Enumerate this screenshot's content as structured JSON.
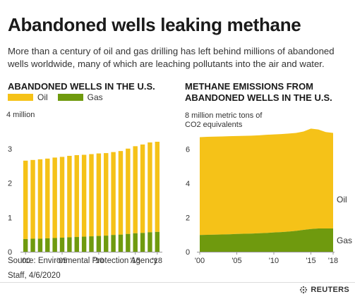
{
  "title": "Abandoned wells leaking methane",
  "subtitle": "More than a century of oil and gas drilling has left behind millions of abandoned wells worldwide, many of which are leaching pollutants into the air and water.",
  "footer": {
    "source": "Source: Environmental Protection Agency",
    "credit": "Staff, 4/6/2020",
    "logo": "REUTERS"
  },
  "colors": {
    "oil": "#f5c218",
    "gas": "#6f9a0e",
    "axis": "#999999",
    "grid": "#cccccc"
  },
  "chart_data": [
    {
      "type": "bar",
      "stacked": true,
      "title": "ABANDONED WELLS IN THE U.S.",
      "unit_label": "4 million",
      "legend": {
        "oil": "Oil",
        "gas": "Gas"
      },
      "categories": [
        "2000",
        "2001",
        "2002",
        "2003",
        "2004",
        "2005",
        "2006",
        "2007",
        "2008",
        "2009",
        "2010",
        "2011",
        "2012",
        "2013",
        "2014",
        "2015",
        "2016",
        "2017",
        "2018"
      ],
      "tick_labels": [
        "'00",
        "'05",
        "'10",
        "'15",
        "'18"
      ],
      "y_ticks": [
        "0",
        "1",
        "2",
        "3"
      ],
      "ylim": [
        0,
        4
      ],
      "series": [
        {
          "name": "Gas",
          "values": [
            0.37,
            0.38,
            0.38,
            0.39,
            0.4,
            0.41,
            0.42,
            0.43,
            0.44,
            0.45,
            0.46,
            0.47,
            0.49,
            0.5,
            0.52,
            0.54,
            0.55,
            0.57,
            0.58
          ]
        },
        {
          "name": "Oil",
          "values": [
            2.28,
            2.29,
            2.31,
            2.32,
            2.34,
            2.35,
            2.37,
            2.38,
            2.38,
            2.39,
            2.4,
            2.4,
            2.41,
            2.43,
            2.48,
            2.53,
            2.57,
            2.61,
            2.62
          ]
        }
      ],
      "grid": false,
      "legend_position": "top-left"
    },
    {
      "type": "area",
      "stacked": true,
      "title": "METHANE EMISSIONS FROM ABANDONED WELLS IN THE U.S.",
      "unit_label": "8 million metric tons of CO2 equivalents",
      "x": [
        2000,
        2001,
        2002,
        2003,
        2004,
        2005,
        2006,
        2007,
        2008,
        2009,
        2010,
        2011,
        2012,
        2013,
        2014,
        2015,
        2016,
        2017,
        2018
      ],
      "tick_labels": [
        "'00",
        "'05",
        "'10",
        "'15",
        "'18"
      ],
      "y_ticks": [
        "0",
        "2",
        "4",
        "6"
      ],
      "ylim": [
        0,
        8
      ],
      "series": [
        {
          "name": "Gas",
          "values": [
            0.98,
            0.99,
            1.0,
            1.01,
            1.02,
            1.04,
            1.05,
            1.06,
            1.08,
            1.1,
            1.13,
            1.15,
            1.18,
            1.22,
            1.28,
            1.33,
            1.36,
            1.36,
            1.36
          ]
        },
        {
          "name": "Oil",
          "values": [
            5.72,
            5.73,
            5.73,
            5.73,
            5.74,
            5.73,
            5.73,
            5.73,
            5.73,
            5.74,
            5.73,
            5.73,
            5.73,
            5.73,
            5.75,
            5.87,
            5.79,
            5.64,
            5.59
          ]
        }
      ],
      "inline_labels": {
        "oil": "Oil",
        "gas": "Gas"
      },
      "grid": false
    }
  ]
}
